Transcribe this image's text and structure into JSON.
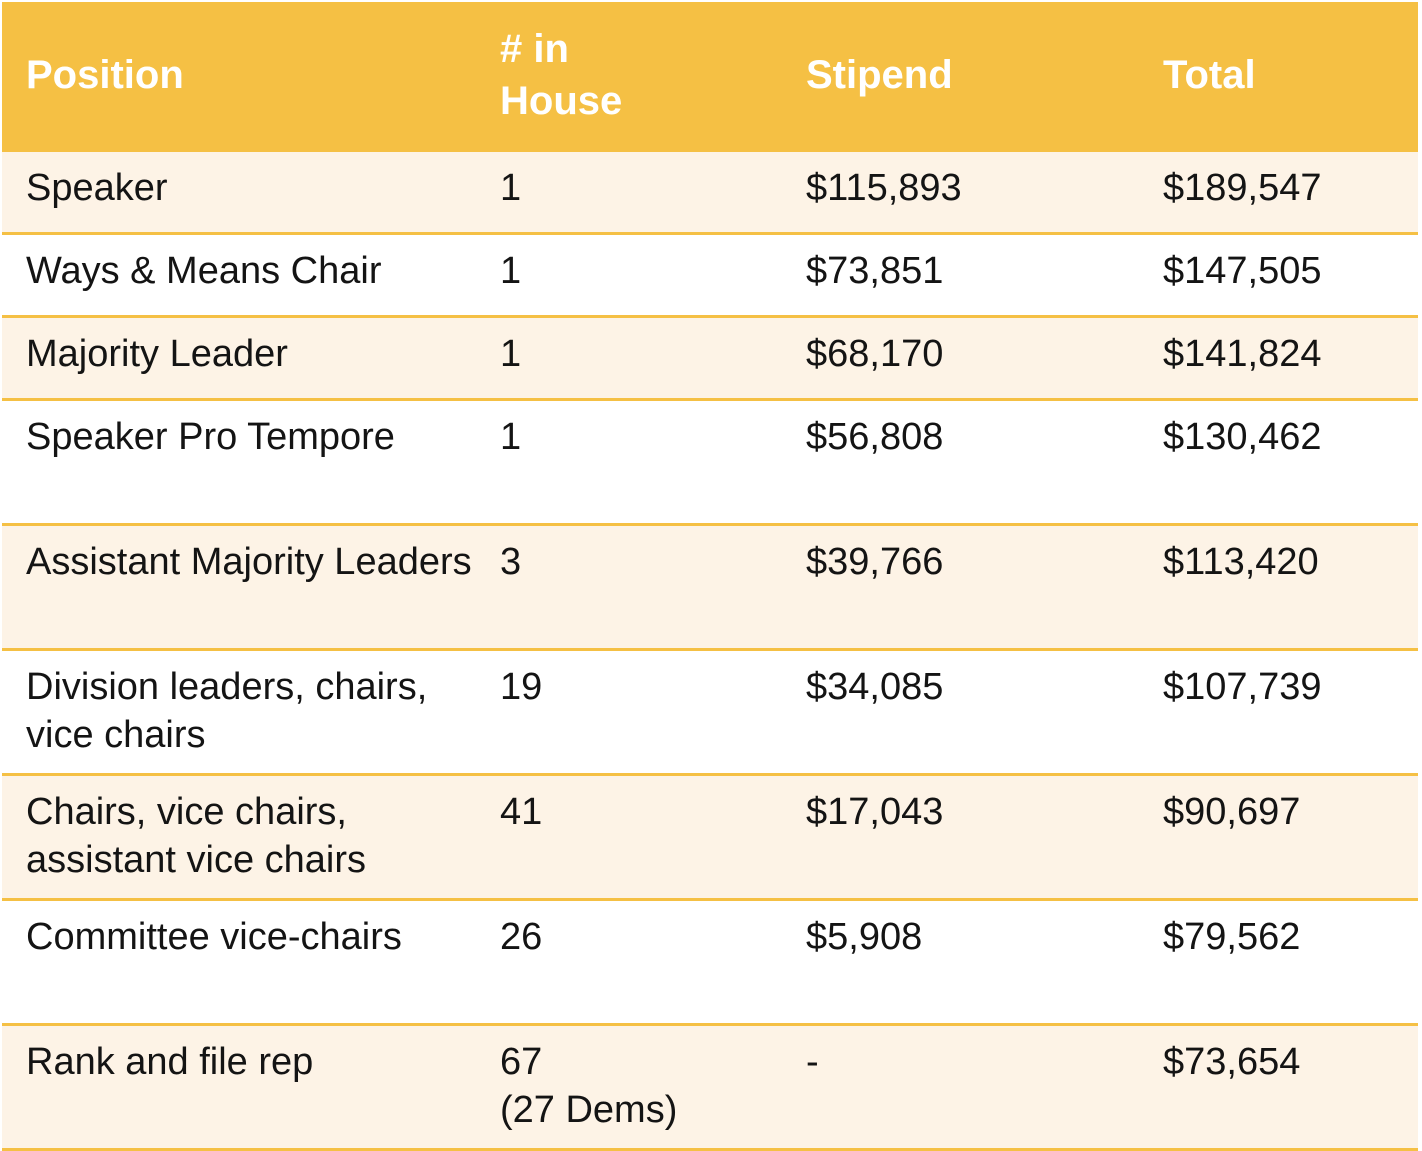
{
  "table": {
    "headers": {
      "position": "Position",
      "in_house_line1": "# in",
      "in_house_line2": "House",
      "stipend": "Stipend",
      "total": "Total"
    },
    "rows": [
      {
        "position": "Speaker",
        "in_house": "1",
        "in_house_note": "",
        "stipend": "$115,893",
        "total": "$189,547"
      },
      {
        "position": "Ways & Means Chair",
        "in_house": "1",
        "in_house_note": "",
        "stipend": "$73,851",
        "total": "$147,505"
      },
      {
        "position": "Majority Leader",
        "in_house": "1",
        "in_house_note": "",
        "stipend": "$68,170",
        "total": "$141,824"
      },
      {
        "position": "Speaker Pro Tempore",
        "in_house": "1",
        "in_house_note": "",
        "stipend": "$56,808",
        "total": "$130,462"
      },
      {
        "position": "Assistant Majority Leaders",
        "in_house": "3",
        "in_house_note": "",
        "stipend": "$39,766",
        "total": "$113,420"
      },
      {
        "position": "Division leaders, chairs, vice chairs",
        "in_house": "19",
        "in_house_note": "",
        "stipend": "$34,085",
        "total": "$107,739"
      },
      {
        "position": "Chairs, vice chairs, assistant vice chairs",
        "in_house": "41",
        "in_house_note": "",
        "stipend": "$17,043",
        "total": "$90,697"
      },
      {
        "position": "Committee vice-chairs",
        "in_house": "26",
        "in_house_note": "",
        "stipend": "$5,908",
        "total": "$79,562"
      },
      {
        "position": "Rank and file rep",
        "in_house": "67",
        "in_house_note": "(27 Dems)",
        "stipend": "-",
        "total": "$73,654"
      }
    ]
  }
}
